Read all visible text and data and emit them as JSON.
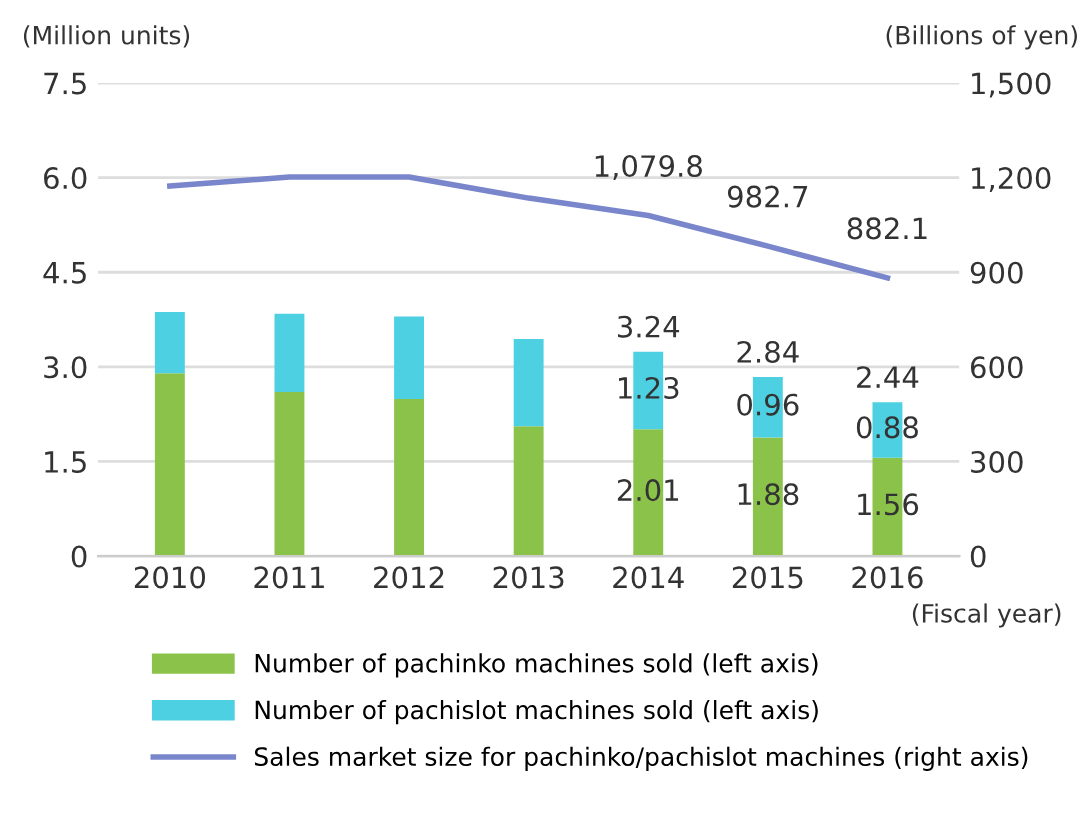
{
  "chart_data": {
    "type": "bar",
    "stacked": true,
    "categories": [
      "2010",
      "2011",
      "2012",
      "2013",
      "2014",
      "2015",
      "2016"
    ],
    "xlabel": "(Fiscal year)",
    "ylabel": "(Million units)",
    "y2label": "(Billions of yen)",
    "series": [
      {
        "name": "Number of pachinko machines sold (left axis)",
        "color": "#8bc34a",
        "values": [
          2.9,
          2.6,
          2.49,
          2.06,
          2.01,
          1.88,
          1.56
        ],
        "value_labels": [
          null,
          null,
          null,
          null,
          "2.01",
          "1.88",
          "1.56"
        ]
      },
      {
        "name": "Number of pachislot machines sold (left axis)",
        "color": "#4dd0e1",
        "values": [
          0.97,
          1.24,
          1.31,
          1.38,
          1.23,
          0.96,
          0.88
        ],
        "value_labels": [
          null,
          null,
          null,
          null,
          "1.23",
          "0.96",
          "0.88"
        ]
      },
      {
        "name": "Sales market size for pachinko/pachislot machines (right axis)",
        "type": "line",
        "axis": "y2",
        "color": "#7986cb",
        "values": [
          1173,
          1202,
          1202,
          1135,
          1079.8,
          982.7,
          882.1
        ],
        "value_labels": [
          null,
          null,
          null,
          null,
          "1,079.8",
          "982.7",
          "882.1"
        ]
      }
    ],
    "totals": [
      null,
      null,
      null,
      null,
      "3.24",
      "2.84",
      "2.44"
    ],
    "ylim": [
      0,
      7.5
    ],
    "yticks": [
      0,
      1.5,
      {
        "value": 3,
        "label": "3.0"
      },
      4.5,
      {
        "value": 6,
        "label": "6.0"
      },
      7.5
    ],
    "y2lim": [
      0,
      1500
    ],
    "y2ticks": [
      {
        "value": 0,
        "label": "0"
      },
      {
        "value": 300,
        "label": "300"
      },
      {
        "value": 600,
        "label": "600"
      },
      {
        "value": 900,
        "label": "900"
      },
      {
        "value": 1200,
        "label": "1,200"
      },
      {
        "value": 1500,
        "label": "1,500"
      }
    ],
    "grid": "y",
    "legend": "bottom",
    "marker": "none",
    "line_style": "solid"
  }
}
